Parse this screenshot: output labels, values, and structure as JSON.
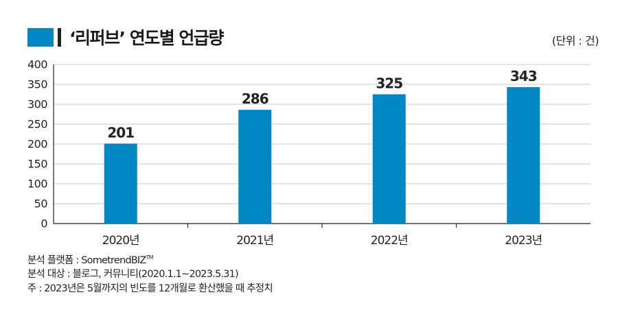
{
  "chart_data": {
    "type": "bar",
    "title": "‘리퍼브’ 연도별 언급량",
    "unit_label": "(단위 : 건)",
    "categories": [
      "2020년",
      "2021년",
      "2022년",
      "2023년"
    ],
    "series": [
      {
        "values": [
          201,
          286,
          325,
          343
        ]
      }
    ],
    "ylim": [
      0,
      400
    ],
    "yticks": [
      0,
      50,
      100,
      150,
      200,
      250,
      300,
      350,
      400
    ],
    "grid": true,
    "bar_color": "#0087c4",
    "grid_color": "#c8c8c8"
  },
  "notes": {
    "platform": "분석 플랫폼 : SometrendBIZ",
    "platform_tm": "TM",
    "target": "분석 대상 : 블로그, 커뮤니티(2020.1.1~2023.5.31)",
    "footnote": "주 : 2023년은 5월까지의 빈도를 12개월로 환산했을 때 추정치"
  }
}
